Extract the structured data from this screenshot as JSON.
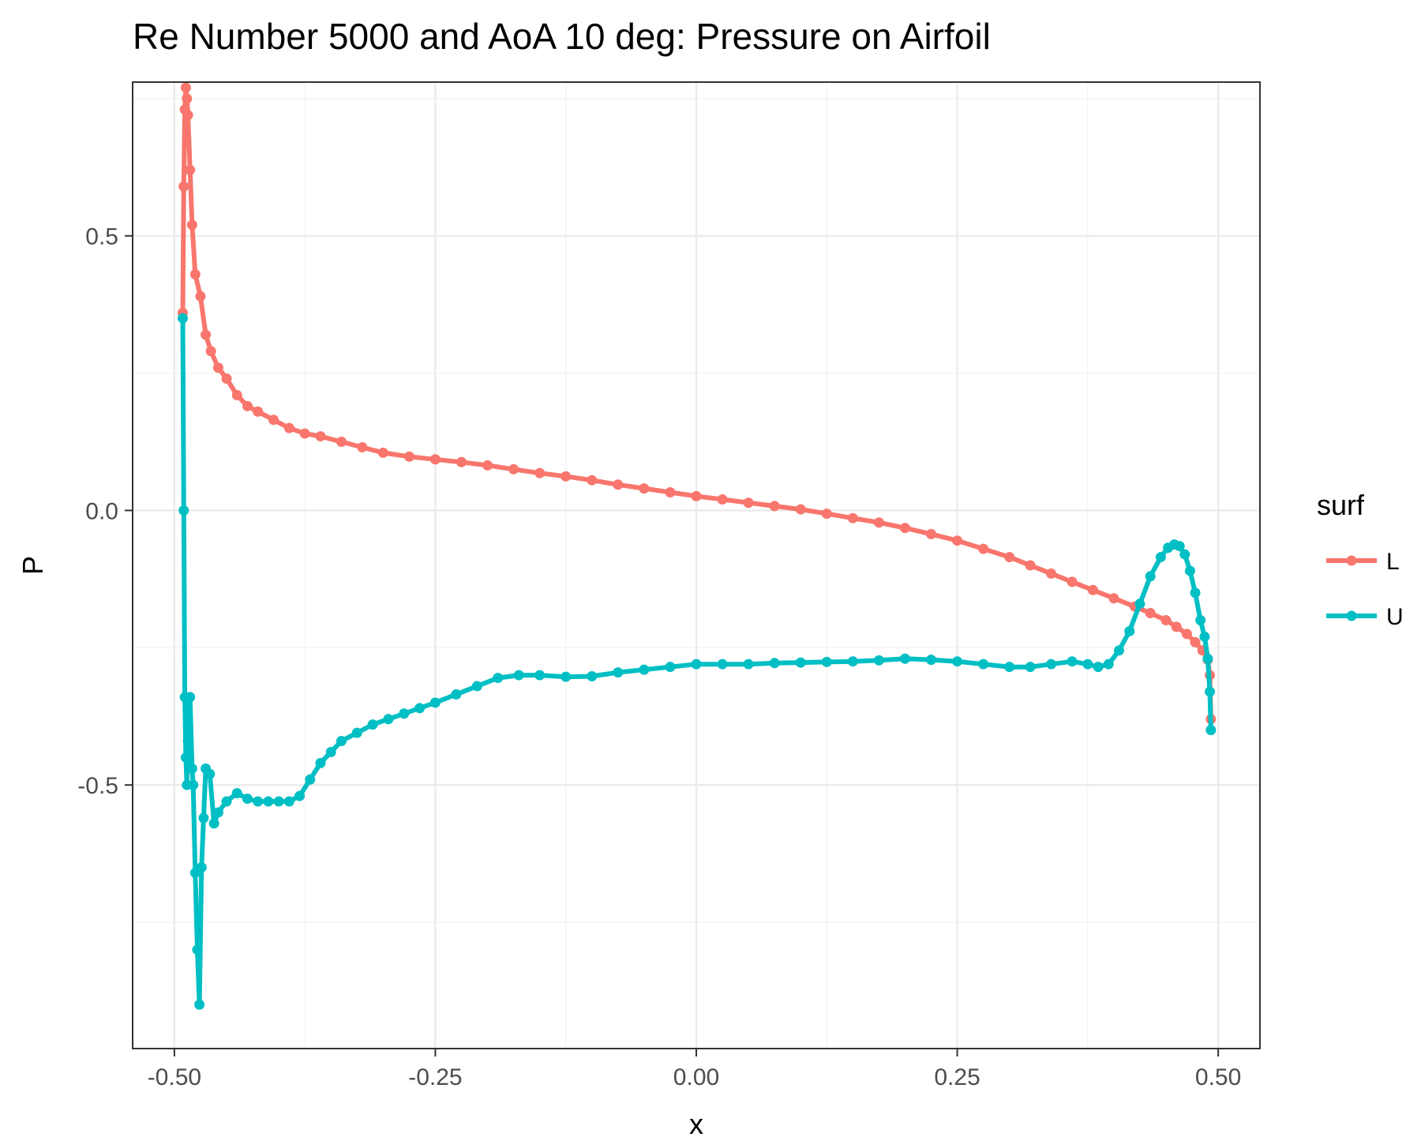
{
  "chart_data": {
    "type": "line",
    "title": "Re Number 5000 and AoA 10 deg: Pressure on Airfoil",
    "xlabel": "x",
    "ylabel": "P",
    "xlim": [
      -0.54,
      0.54
    ],
    "ylim": [
      -0.98,
      0.78
    ],
    "x_ticks": [
      -0.5,
      -0.25,
      0.0,
      0.25,
      0.5
    ],
    "x_tick_labels": [
      "-0.50",
      "-0.25",
      "0.00",
      "0.25",
      "0.50"
    ],
    "y_ticks": [
      -0.5,
      0.0,
      0.5
    ],
    "y_tick_labels": [
      "-0.5",
      "0.0",
      "0.5"
    ],
    "grid": true,
    "markers": true,
    "legend": {
      "title": "surf",
      "position": "right"
    },
    "series": [
      {
        "name": "L",
        "color": "#F8766D",
        "x": [
          -0.492,
          -0.491,
          -0.49,
          -0.489,
          -0.488,
          -0.487,
          -0.485,
          -0.483,
          -0.48,
          -0.475,
          -0.47,
          -0.465,
          -0.458,
          -0.45,
          -0.44,
          -0.43,
          -0.42,
          -0.405,
          -0.39,
          -0.375,
          -0.36,
          -0.34,
          -0.32,
          -0.3,
          -0.275,
          -0.25,
          -0.225,
          -0.2,
          -0.175,
          -0.15,
          -0.125,
          -0.1,
          -0.075,
          -0.05,
          -0.025,
          0.0,
          0.025,
          0.05,
          0.075,
          0.1,
          0.125,
          0.15,
          0.175,
          0.2,
          0.225,
          0.25,
          0.275,
          0.3,
          0.32,
          0.34,
          0.36,
          0.38,
          0.4,
          0.42,
          0.435,
          0.45,
          0.46,
          0.47,
          0.478,
          0.485,
          0.49,
          0.492,
          0.493
        ],
        "y": [
          0.36,
          0.59,
          0.73,
          0.77,
          0.75,
          0.72,
          0.62,
          0.52,
          0.43,
          0.39,
          0.32,
          0.29,
          0.26,
          0.24,
          0.21,
          0.19,
          0.18,
          0.165,
          0.15,
          0.14,
          0.135,
          0.125,
          0.115,
          0.105,
          0.098,
          0.093,
          0.088,
          0.082,
          0.075,
          0.068,
          0.062,
          0.055,
          0.047,
          0.04,
          0.033,
          0.026,
          0.02,
          0.014,
          0.008,
          0.002,
          -0.006,
          -0.014,
          -0.022,
          -0.032,
          -0.043,
          -0.055,
          -0.07,
          -0.085,
          -0.1,
          -0.115,
          -0.13,
          -0.145,
          -0.16,
          -0.175,
          -0.187,
          -0.2,
          -0.212,
          -0.225,
          -0.24,
          -0.255,
          -0.272,
          -0.3,
          -0.38
        ]
      },
      {
        "name": "U",
        "color": "#00BFC4",
        "x": [
          -0.492,
          -0.491,
          -0.49,
          -0.489,
          -0.488,
          -0.487,
          -0.485,
          -0.483,
          -0.482,
          -0.48,
          -0.478,
          -0.476,
          -0.474,
          -0.472,
          -0.47,
          -0.466,
          -0.462,
          -0.458,
          -0.45,
          -0.44,
          -0.43,
          -0.42,
          -0.41,
          -0.4,
          -0.39,
          -0.38,
          -0.37,
          -0.36,
          -0.35,
          -0.34,
          -0.325,
          -0.31,
          -0.295,
          -0.28,
          -0.265,
          -0.25,
          -0.23,
          -0.21,
          -0.19,
          -0.17,
          -0.15,
          -0.125,
          -0.1,
          -0.075,
          -0.05,
          -0.025,
          0.0,
          0.025,
          0.05,
          0.075,
          0.1,
          0.125,
          0.15,
          0.175,
          0.2,
          0.225,
          0.25,
          0.275,
          0.3,
          0.32,
          0.34,
          0.36,
          0.375,
          0.385,
          0.395,
          0.405,
          0.415,
          0.425,
          0.435,
          0.445,
          0.452,
          0.458,
          0.463,
          0.468,
          0.473,
          0.478,
          0.483,
          0.487,
          0.49,
          0.492,
          0.493
        ],
        "y": [
          0.35,
          0.0,
          -0.34,
          -0.45,
          -0.5,
          -0.42,
          -0.34,
          -0.47,
          -0.5,
          -0.66,
          -0.8,
          -0.9,
          -0.65,
          -0.56,
          -0.47,
          -0.48,
          -0.57,
          -0.55,
          -0.53,
          -0.515,
          -0.525,
          -0.53,
          -0.53,
          -0.53,
          -0.53,
          -0.52,
          -0.49,
          -0.46,
          -0.44,
          -0.42,
          -0.405,
          -0.39,
          -0.38,
          -0.37,
          -0.36,
          -0.35,
          -0.335,
          -0.32,
          -0.305,
          -0.3,
          -0.3,
          -0.303,
          -0.302,
          -0.295,
          -0.29,
          -0.285,
          -0.28,
          -0.28,
          -0.28,
          -0.278,
          -0.277,
          -0.276,
          -0.275,
          -0.273,
          -0.27,
          -0.272,
          -0.275,
          -0.28,
          -0.285,
          -0.285,
          -0.28,
          -0.275,
          -0.28,
          -0.285,
          -0.28,
          -0.255,
          -0.22,
          -0.17,
          -0.12,
          -0.085,
          -0.068,
          -0.062,
          -0.065,
          -0.08,
          -0.11,
          -0.15,
          -0.2,
          -0.23,
          -0.27,
          -0.33,
          -0.4
        ]
      }
    ]
  }
}
